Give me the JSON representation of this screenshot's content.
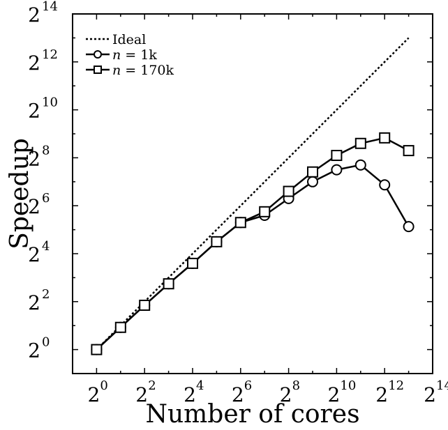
{
  "chart_data": {
    "type": "line",
    "scale": "log2",
    "xlabel": "Number of cores",
    "ylabel": "Speedup",
    "xlim": [
      0.5,
      16384
    ],
    "ylim": [
      0.5,
      16384
    ],
    "x_ticks": [
      {
        "base": "2",
        "exp": "0",
        "value": 1
      },
      {
        "base": "2",
        "exp": "2",
        "value": 4
      },
      {
        "base": "2",
        "exp": "4",
        "value": 16
      },
      {
        "base": "2",
        "exp": "6",
        "value": 64
      },
      {
        "base": "2",
        "exp": "8",
        "value": 256
      },
      {
        "base": "2",
        "exp": "10",
        "value": 1024
      },
      {
        "base": "2",
        "exp": "12",
        "value": 4096
      },
      {
        "base": "2",
        "exp": "14",
        "value": 16384
      }
    ],
    "y_ticks": [
      {
        "base": "2",
        "exp": "0",
        "value": 1
      },
      {
        "base": "2",
        "exp": "2",
        "value": 4
      },
      {
        "base": "2",
        "exp": "4",
        "value": 16
      },
      {
        "base": "2",
        "exp": "6",
        "value": 64
      },
      {
        "base": "2",
        "exp": "8",
        "value": 256
      },
      {
        "base": "2",
        "exp": "10",
        "value": 1024
      },
      {
        "base": "2",
        "exp": "12",
        "value": 4096
      },
      {
        "base": "2",
        "exp": "14",
        "value": 16384
      }
    ],
    "legend_position": "top-left",
    "series": [
      {
        "name": "Ideal",
        "label_parts": {
          "prefix": "Ideal",
          "var": "",
          "rest": ""
        },
        "style": "dotted",
        "marker": "none",
        "x": [
          1,
          8192
        ],
        "y": [
          1,
          8192
        ]
      },
      {
        "name": "n = 1k",
        "label_parts": {
          "prefix": "",
          "var": "n",
          "rest": " = 1k"
        },
        "style": "solid",
        "marker": "circle",
        "x": [
          1,
          2,
          4,
          8,
          16,
          32,
          64,
          128,
          256,
          512,
          1024,
          2048,
          4096,
          8192
        ],
        "y": [
          1,
          1.9,
          3.6,
          6.7,
          12.1,
          22.6,
          39.4,
          48.5,
          78.8,
          128,
          181,
          208,
          117,
          35
        ]
      },
      {
        "name": "n = 170k",
        "label_parts": {
          "prefix": "",
          "var": "n",
          "rest": " = 170k"
        },
        "style": "solid",
        "marker": "square",
        "x": [
          1,
          2,
          4,
          8,
          16,
          32,
          64,
          128,
          256,
          512,
          1024,
          2048,
          4096,
          8192
        ],
        "y": [
          1,
          1.9,
          3.6,
          6.7,
          12.1,
          22.6,
          39.4,
          53.8,
          97,
          170,
          274,
          388,
          455,
          315
        ]
      }
    ]
  }
}
